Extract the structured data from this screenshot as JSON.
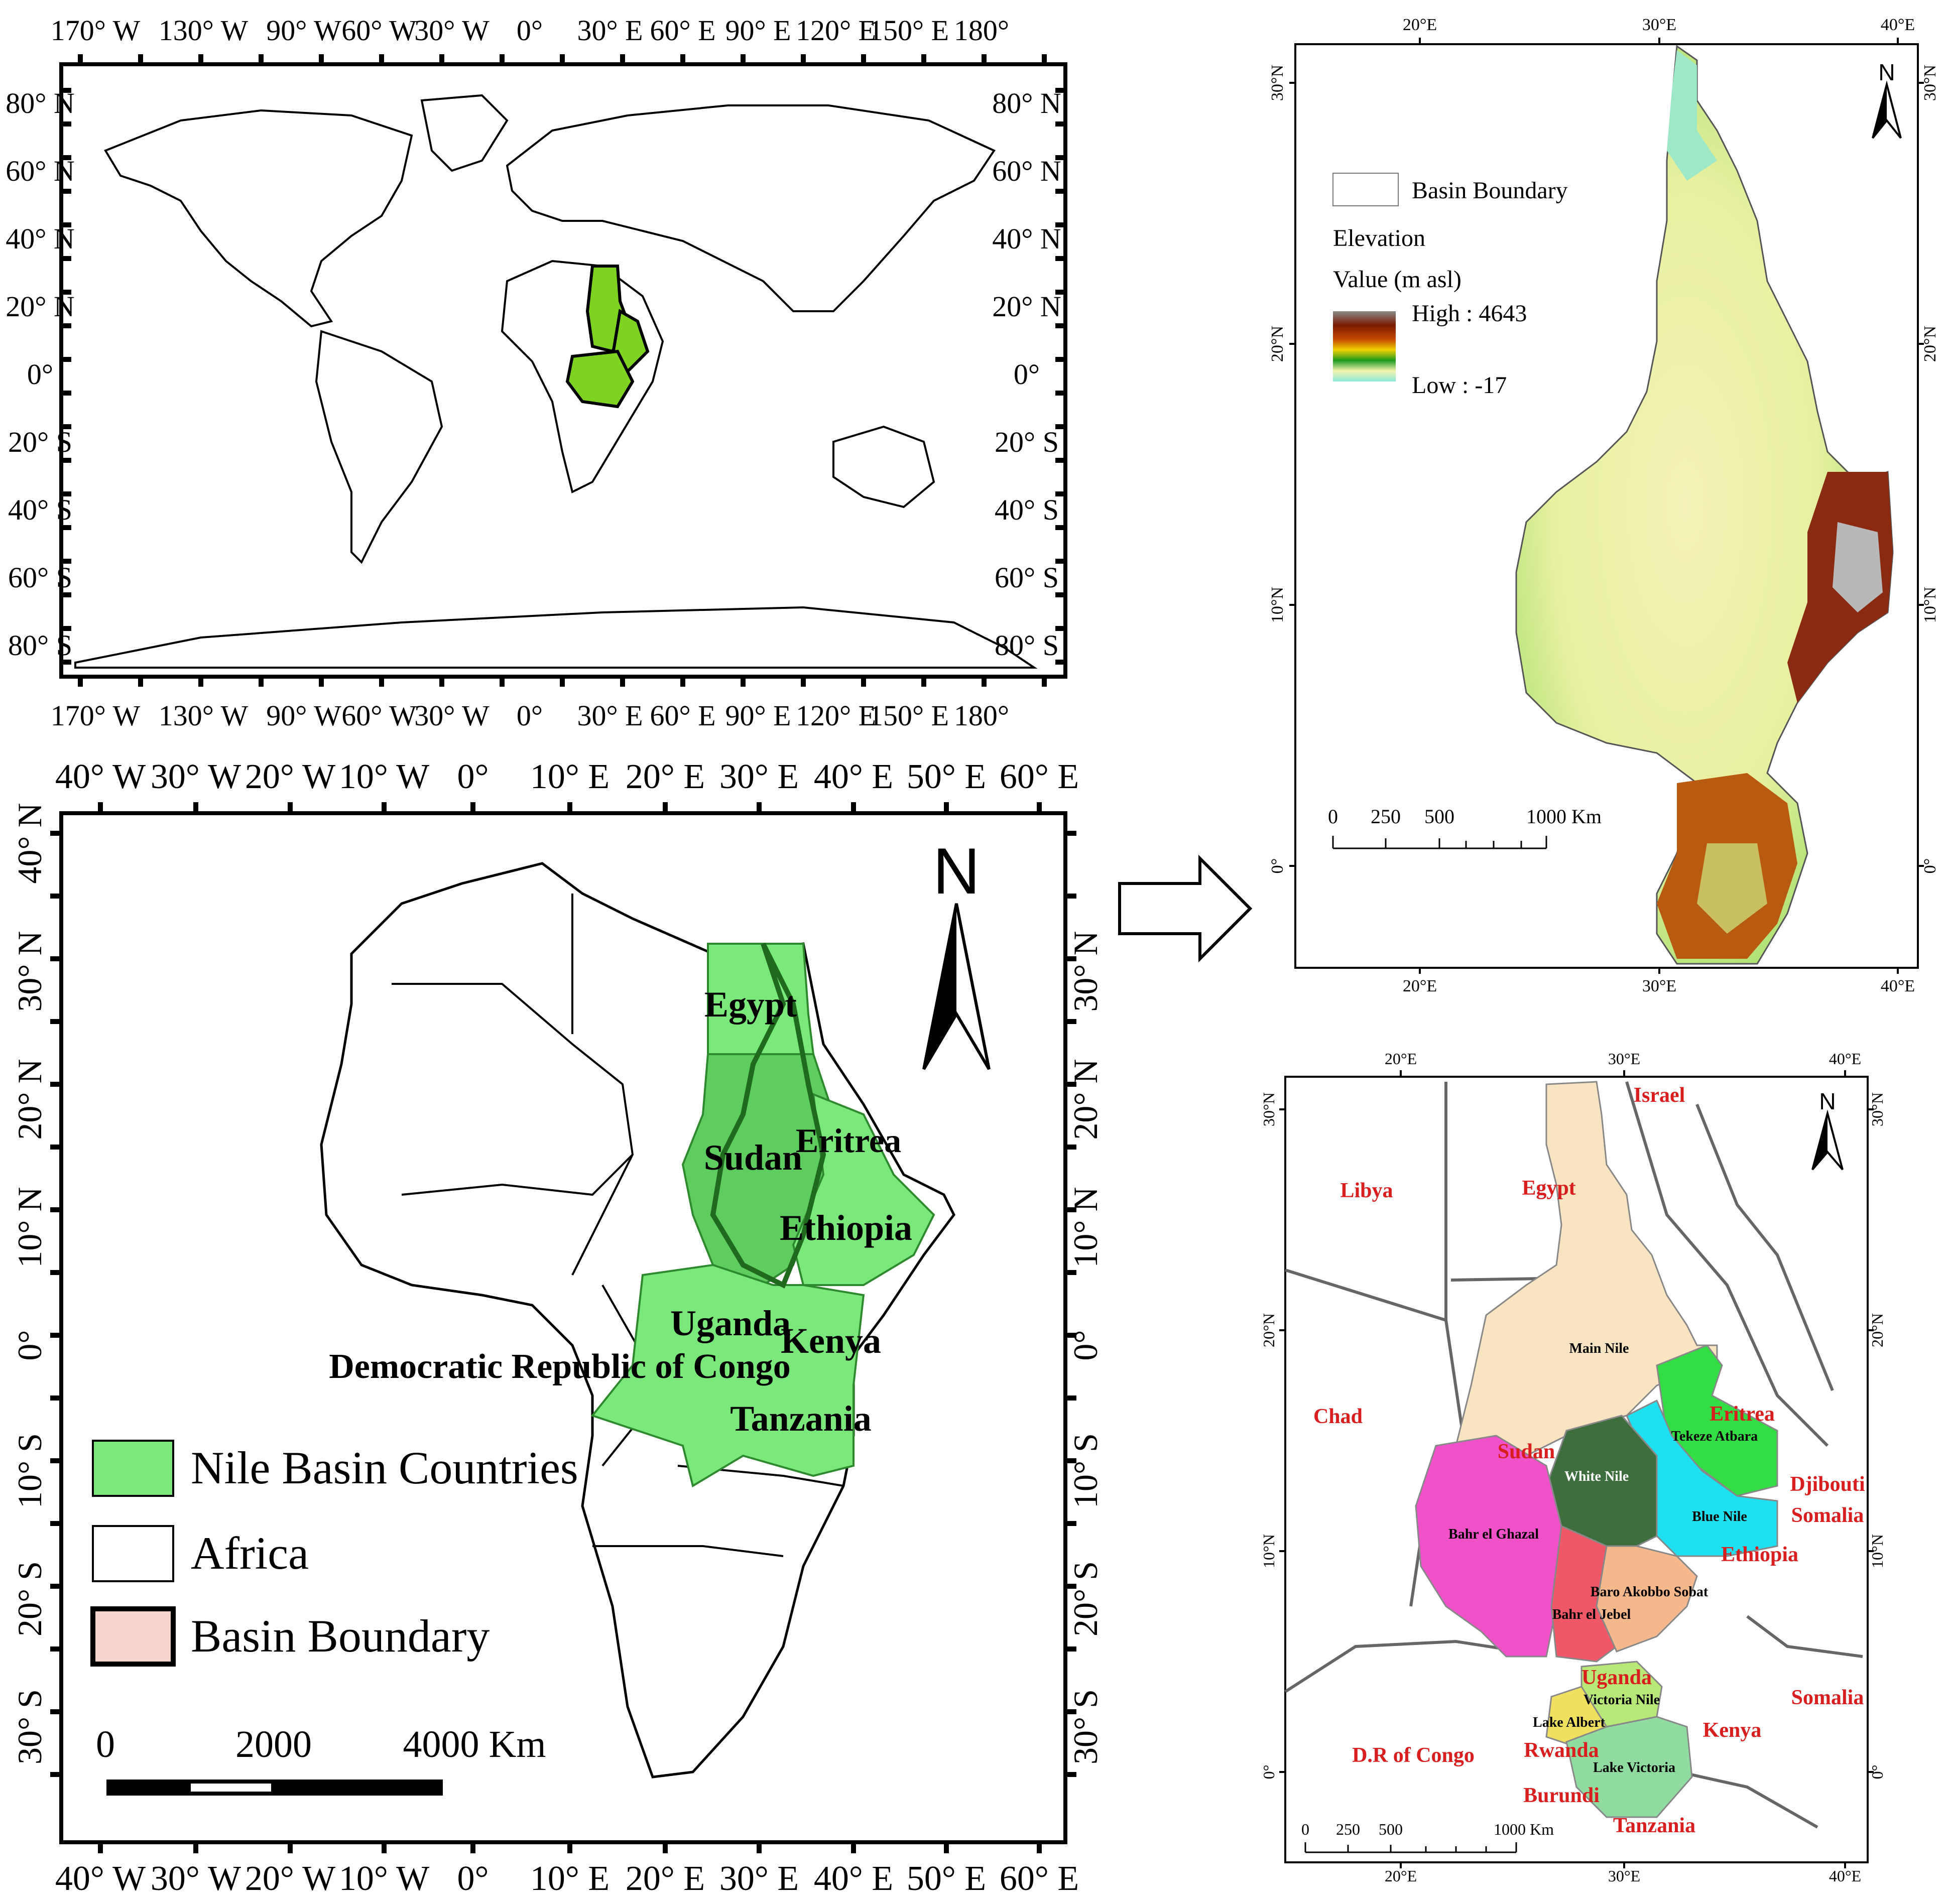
{
  "world_map": {
    "top_lon_labels": [
      "170° W",
      "130° W",
      "90° W",
      "60° W",
      "30° W",
      "0°",
      "30° E",
      "60° E",
      "90° E",
      "120° E",
      "150° E",
      "180°"
    ],
    "bottom_lon_labels": [
      "170° W",
      "130° W",
      "90° W",
      "60° W",
      "30° W",
      "0°",
      "30° E",
      "60° E",
      "90° E",
      "120° E",
      "150° E",
      "180°"
    ],
    "left_lat_labels": [
      "80° N",
      "60° N",
      "40° N",
      "20° N",
      "0°",
      "20° S",
      "40° S",
      "60° S",
      "80° S"
    ],
    "right_lat_labels": [
      "80° N",
      "60° N",
      "40° N",
      "20° N",
      "0°",
      "20° S",
      "40° S",
      "60° S",
      "80° S"
    ],
    "highlight_color": "#7ed321"
  },
  "africa_map": {
    "top_lon_labels": [
      "40° W",
      "30° W",
      "20° W",
      "10° W",
      "0°",
      "10° E",
      "20° E",
      "30° E",
      "40° E",
      "50° E",
      "60° E"
    ],
    "bottom_lon_labels": [
      "40° W",
      "30° W",
      "20° W",
      "10° W",
      "0°",
      "10° E",
      "20° E",
      "30° E",
      "40° E",
      "50° E",
      "60° E"
    ],
    "left_lat_labels": [
      "40° N",
      "30° N",
      "20° N",
      "10° N",
      "0°",
      "10° S",
      "20° S",
      "30° S"
    ],
    "right_lat_labels": [
      "30° N",
      "20° N",
      "10° N",
      "0°",
      "10° S",
      "20° S",
      "30° S"
    ],
    "north": "N",
    "country_labels": [
      "Egypt",
      "Sudan",
      "Eritrea",
      "Ethiopia",
      "Uganda",
      "Kenya",
      "Democratic Republic of Congo",
      "Tanzania"
    ],
    "legend": [
      {
        "label": "Nile Basin Countries",
        "color": "#7ae87a"
      },
      {
        "label": "Africa",
        "color": "#ffffff"
      },
      {
        "label": "Basin Boundary",
        "color": "#f8d5cc"
      }
    ],
    "scale": {
      "labels": [
        "0",
        "2000",
        "4000 Km"
      ]
    }
  },
  "elevation_map": {
    "top_lon_labels": [
      "20°E",
      "30°E",
      "40°E"
    ],
    "bottom_lon_labels": [
      "20°E",
      "30°E",
      "40°E"
    ],
    "left_lat_labels": [
      "30°N",
      "20°N",
      "10°N",
      "0°"
    ],
    "right_lat_labels": [
      "30°N",
      "20°N",
      "10°N",
      "0°"
    ],
    "north": "N",
    "legend": {
      "boundary_label": "Basin Boundary",
      "elevation_title": "Elevation",
      "value_title": "Value (m asl)",
      "high_label": "High : 4643",
      "low_label": "Low : -17"
    },
    "scale": {
      "labels": [
        "0",
        "250",
        "500",
        "1000 Km"
      ]
    }
  },
  "subbasin_map": {
    "top_lon_labels": [
      "20°E",
      "30°E",
      "40°E"
    ],
    "bottom_lon_labels": [
      "20°E",
      "30°E",
      "40°E"
    ],
    "left_lat_labels": [
      "30°N",
      "20°N",
      "10°N",
      "0°"
    ],
    "right_lat_labels": [
      "30°N",
      "20°N",
      "10°N",
      "0°"
    ],
    "north": "N",
    "country_labels": [
      "Israel",
      "Libya",
      "Egypt",
      "Chad",
      "Sudan",
      "Eritrea",
      "Djibouti",
      "Somalia",
      "Ethiopia",
      "Uganda",
      "Somalia",
      "Kenya",
      "D.R of Congo",
      "Rwanda",
      "Burundi",
      "Tanzania"
    ],
    "subbasins": [
      {
        "name": "Main Nile",
        "color": "#f9e4c2"
      },
      {
        "name": "Tekeze Atbara",
        "color": "#33dd44"
      },
      {
        "name": "White Nile",
        "color": "#3e6e3e"
      },
      {
        "name": "Blue Nile",
        "color": "#1ee0f0"
      },
      {
        "name": "Bahr el Ghazal",
        "color": "#f050c8"
      },
      {
        "name": "Baro Akobbo Sobat",
        "color": "#f5b88c"
      },
      {
        "name": "Bahr el Jebel",
        "color": "#f05868"
      },
      {
        "name": "Victoria Nile",
        "color": "#b8e878"
      },
      {
        "name": "Lake Albert",
        "color": "#f0e060"
      },
      {
        "name": "Lake Victoria",
        "color": "#90dca0"
      }
    ],
    "scale": {
      "labels": [
        "0",
        "250",
        "500",
        "1000 Km"
      ]
    }
  }
}
